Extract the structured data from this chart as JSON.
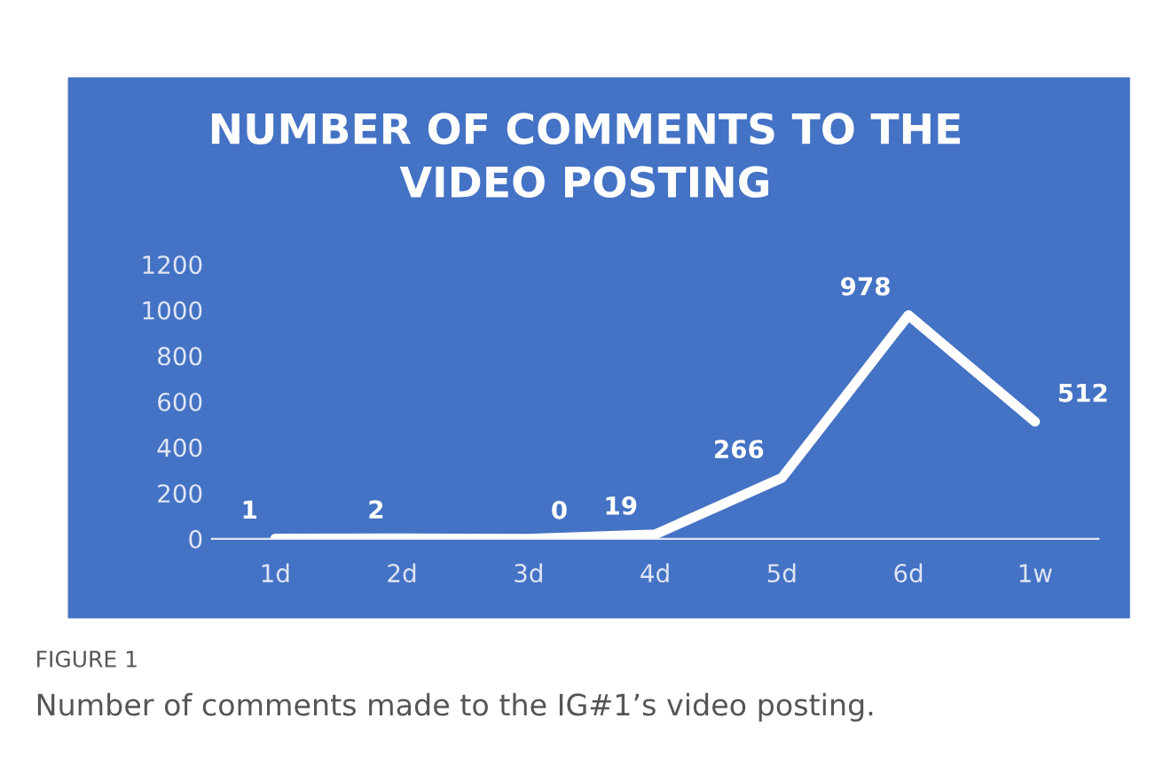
{
  "chart_data": {
    "type": "line",
    "title": "NUMBER OF COMMENTS TO THE\nVIDEO POSTING",
    "categories": [
      "1d",
      "2d",
      "3d",
      "4d",
      "5d",
      "6d",
      "1w"
    ],
    "series": [
      {
        "color": "#ffffff",
        "values": [
          1,
          2,
          0,
          19,
          266,
          978,
          512
        ]
      }
    ],
    "ylim": [
      0,
      1200
    ],
    "yticks": [
      0,
      200,
      400,
      600,
      800,
      1000,
      1200
    ],
    "grid": false,
    "marker": "none",
    "line_style": "solid",
    "data_labels": true,
    "annotations": [
      "FIGURE 1",
      "Number of comments made to the IG#1’s video posting."
    ]
  }
}
